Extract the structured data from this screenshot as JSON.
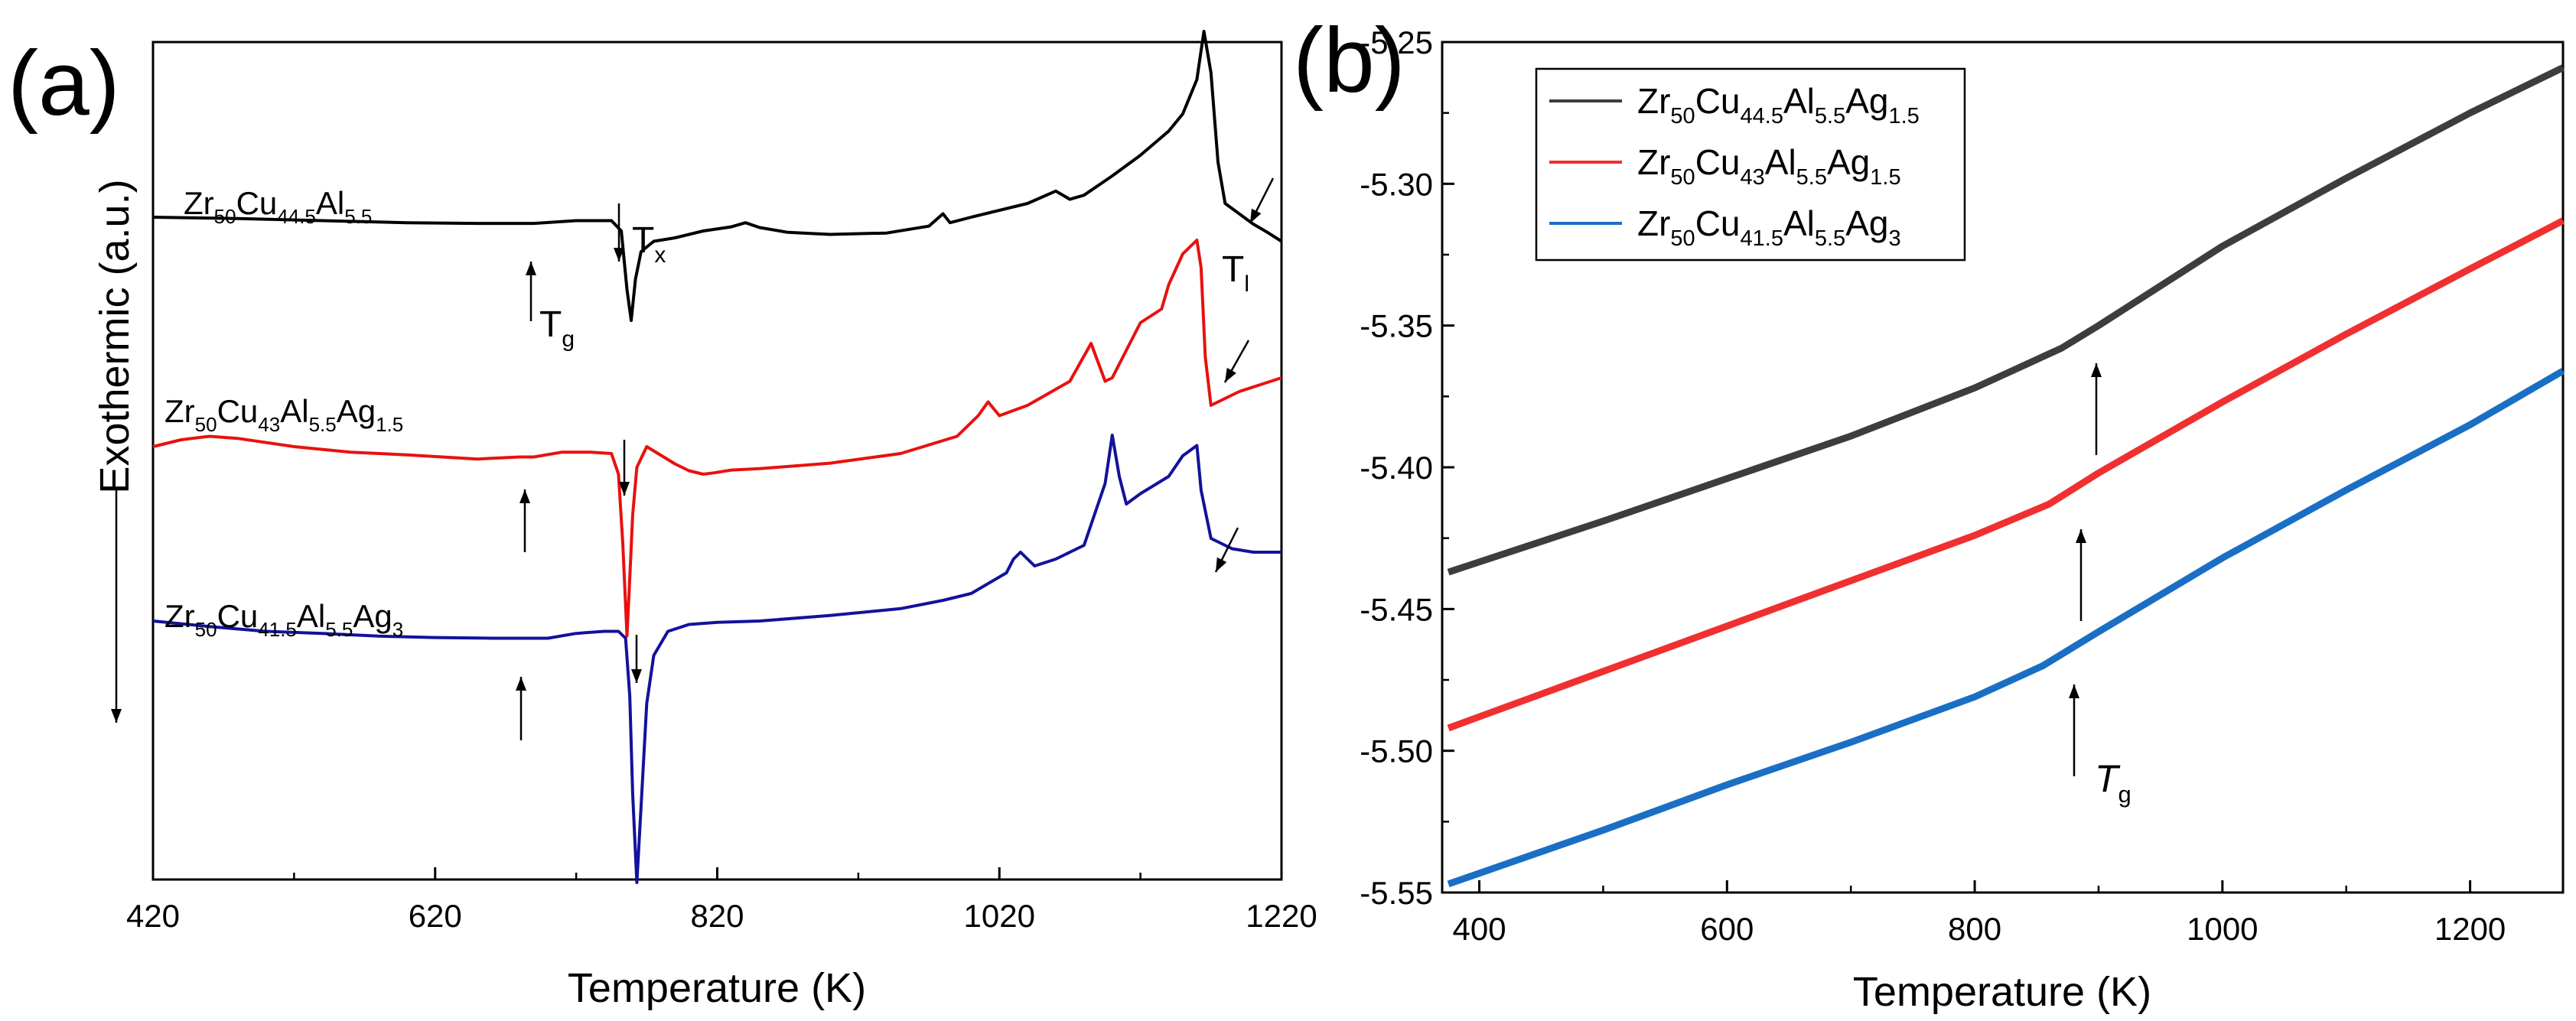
{
  "chart_data": [
    {
      "panel_label": "(a)",
      "type": "line",
      "xlabel": "Temperature (K)",
      "ylabel": "Exothermic (a.u.)",
      "xlim": [
        420,
        1220
      ],
      "xticks": [
        420,
        620,
        820,
        1020,
        1220
      ],
      "y_ticks_shown": false,
      "grid": false,
      "legend": "none",
      "series": [
        {
          "label": {
            "base": "Zr",
            "parts": [
              {
                "sub": "50"
              },
              {
                "text": "Cu"
              },
              {
                "sub": "44.5"
              },
              {
                "text": "Al"
              },
              {
                "sub": "5.5"
              }
            ]
          },
          "color": "#000000",
          "x": [
            420,
            480,
            540,
            600,
            650,
            690,
            720,
            745,
            752,
            756,
            759,
            762,
            766,
            775,
            790,
            810,
            830,
            840,
            850,
            870,
            900,
            940,
            970,
            980,
            985,
            1000,
            1040,
            1060,
            1070,
            1080,
            1100,
            1120,
            1140,
            1150,
            1160,
            1165,
            1170,
            1175,
            1180,
            1190,
            1200,
            1210,
            1220
          ],
          "y": [
            0.6,
            0.58,
            0.55,
            0.52,
            0.51,
            0.51,
            0.55,
            0.55,
            0.4,
            -0.45,
            -0.9,
            -0.3,
            0.1,
            0.25,
            0.3,
            0.4,
            0.46,
            0.52,
            0.45,
            0.38,
            0.35,
            0.37,
            0.47,
            0.65,
            0.52,
            0.6,
            0.8,
            0.98,
            0.86,
            0.92,
            1.2,
            1.5,
            1.85,
            2.1,
            2.6,
            3.3,
            2.7,
            1.4,
            0.8,
            0.65,
            0.5,
            0.38,
            0.25
          ]
        },
        {
          "label": {
            "base": "Zr",
            "parts": [
              {
                "sub": "50"
              },
              {
                "text": "Cu"
              },
              {
                "sub": "43"
              },
              {
                "text": "Al"
              },
              {
                "sub": "5.5"
              },
              {
                "text": "Ag"
              },
              {
                "sub": "1.5"
              }
            ]
          },
          "color": "#e8110f",
          "x": [
            420,
            440,
            460,
            480,
            520,
            560,
            600,
            650,
            680,
            690,
            710,
            730,
            745,
            750,
            753,
            756,
            758,
            760,
            763,
            770,
            790,
            800,
            810,
            818,
            830,
            850,
            900,
            950,
            990,
            1005,
            1012,
            1020,
            1040,
            1070,
            1085,
            1095,
            1100,
            1110,
            1120,
            1135,
            1140,
            1150,
            1160,
            1163,
            1166,
            1170,
            1175,
            1190,
            1205,
            1220
          ],
          "y": [
            0.6,
            0.7,
            0.75,
            0.72,
            0.6,
            0.52,
            0.48,
            0.42,
            0.45,
            0.45,
            0.52,
            0.52,
            0.5,
            0.2,
            -0.8,
            -2.15,
            -1.3,
            -0.4,
            0.3,
            0.6,
            0.35,
            0.25,
            0.2,
            0.22,
            0.26,
            0.28,
            0.36,
            0.5,
            0.75,
            1.05,
            1.25,
            1.05,
            1.2,
            1.55,
            2.1,
            1.55,
            1.6,
            2.0,
            2.4,
            2.6,
            2.95,
            3.4,
            3.6,
            3.2,
            1.9,
            1.2,
            1.25,
            1.4,
            1.5,
            1.6
          ]
        },
        {
          "label": {
            "base": "Zr",
            "parts": [
              {
                "sub": "50"
              },
              {
                "text": "Cu"
              },
              {
                "sub": "41.5"
              },
              {
                "text": "Al"
              },
              {
                "sub": "5.5"
              },
              {
                "text": "Ag"
              },
              {
                "sub": "3"
              }
            ]
          },
          "color": "#12129c",
          "x": [
            420,
            460,
            500,
            540,
            580,
            620,
            660,
            700,
            720,
            740,
            750,
            755,
            758,
            760,
            763,
            766,
            770,
            775,
            785,
            800,
            820,
            850,
            900,
            950,
            980,
            1000,
            1025,
            1030,
            1035,
            1045,
            1060,
            1080,
            1095,
            1100,
            1105,
            1110,
            1120,
            1140,
            1150,
            1160,
            1163,
            1170,
            1185,
            1200,
            1220
          ],
          "y": [
            0.7,
            0.62,
            0.55,
            0.52,
            0.48,
            0.46,
            0.45,
            0.45,
            0.52,
            0.55,
            0.55,
            0.45,
            -0.4,
            -1.8,
            -3.1,
            -2.0,
            -0.5,
            0.2,
            0.55,
            0.65,
            0.68,
            0.7,
            0.78,
            0.88,
            1.0,
            1.1,
            1.4,
            1.6,
            1.7,
            1.5,
            1.6,
            1.8,
            2.7,
            3.4,
            2.8,
            2.4,
            2.55,
            2.8,
            3.1,
            3.25,
            2.6,
            1.9,
            1.75,
            1.7,
            1.7
          ]
        }
      ],
      "annotations": {
        "Tg": {
          "base": "T",
          "parts": [
            {
              "sub": "g"
            }
          ]
        },
        "Tx": {
          "base": "T",
          "parts": [
            {
              "sub": "x"
            }
          ]
        },
        "Tl": {
          "base": "T",
          "parts": [
            {
              "sub": "l"
            }
          ]
        }
      }
    },
    {
      "panel_label": "(b)",
      "type": "line",
      "xlabel": "Temperature (K)",
      "ylabel": "",
      "xlim": [
        370,
        1275
      ],
      "ylim": [
        -5.55,
        -5.25
      ],
      "xticks": [
        400,
        600,
        800,
        1000,
        1200
      ],
      "yticks": [
        -5.55,
        -5.5,
        -5.45,
        -5.4,
        -5.35,
        -5.3,
        -5.25
      ],
      "ytick_labels": [
        "-5.55",
        "-5.50",
        "-5.45",
        "-5.40",
        "-5.35",
        "-5.30",
        "-5.25"
      ],
      "grid": false,
      "legend": "top-left",
      "series": [
        {
          "label": {
            "base": "Zr",
            "parts": [
              {
                "sub": "50"
              },
              {
                "text": "Cu"
              },
              {
                "sub": "44.5"
              },
              {
                "text": "Al"
              },
              {
                "sub": "5.5"
              },
              {
                "text": "Ag"
              },
              {
                "sub": "1.5"
              }
            ]
          },
          "color": "#3d3d3d",
          "x": [
            375,
            500,
            600,
            700,
            800,
            870,
            900,
            1000,
            1100,
            1200,
            1275
          ],
          "y": [
            -5.437,
            -5.419,
            -5.404,
            -5.389,
            -5.372,
            -5.358,
            -5.35,
            -5.322,
            -5.298,
            -5.275,
            -5.259
          ]
        },
        {
          "label": {
            "base": "Zr",
            "parts": [
              {
                "sub": "50"
              },
              {
                "text": "Cu"
              },
              {
                "sub": "43"
              },
              {
                "text": "Al"
              },
              {
                "sub": "5.5"
              },
              {
                "text": "Ag"
              },
              {
                "sub": "1.5"
              }
            ]
          },
          "color": "#f03030",
          "x": [
            375,
            500,
            600,
            700,
            800,
            860,
            900,
            1000,
            1100,
            1200,
            1275
          ],
          "y": [
            -5.492,
            -5.472,
            -5.456,
            -5.44,
            -5.424,
            -5.413,
            -5.402,
            -5.377,
            -5.353,
            -5.33,
            -5.313
          ]
        },
        {
          "label": {
            "base": "Zr",
            "parts": [
              {
                "sub": "50"
              },
              {
                "text": "Cu"
              },
              {
                "sub": "41.5"
              },
              {
                "text": "Al"
              },
              {
                "sub": "5.5"
              },
              {
                "text": "Ag"
              },
              {
                "sub": "3"
              }
            ]
          },
          "color": "#1a6fc4",
          "x": [
            375,
            500,
            600,
            700,
            800,
            855,
            900,
            1000,
            1100,
            1200,
            1275
          ],
          "y": [
            -5.547,
            -5.528,
            -5.512,
            -5.497,
            -5.481,
            -5.47,
            -5.458,
            -5.432,
            -5.408,
            -5.385,
            -5.366
          ]
        }
      ],
      "annotations": {
        "Tg": {
          "base": "T",
          "parts": [
            {
              "sub": "g"
            }
          ]
        }
      }
    }
  ]
}
